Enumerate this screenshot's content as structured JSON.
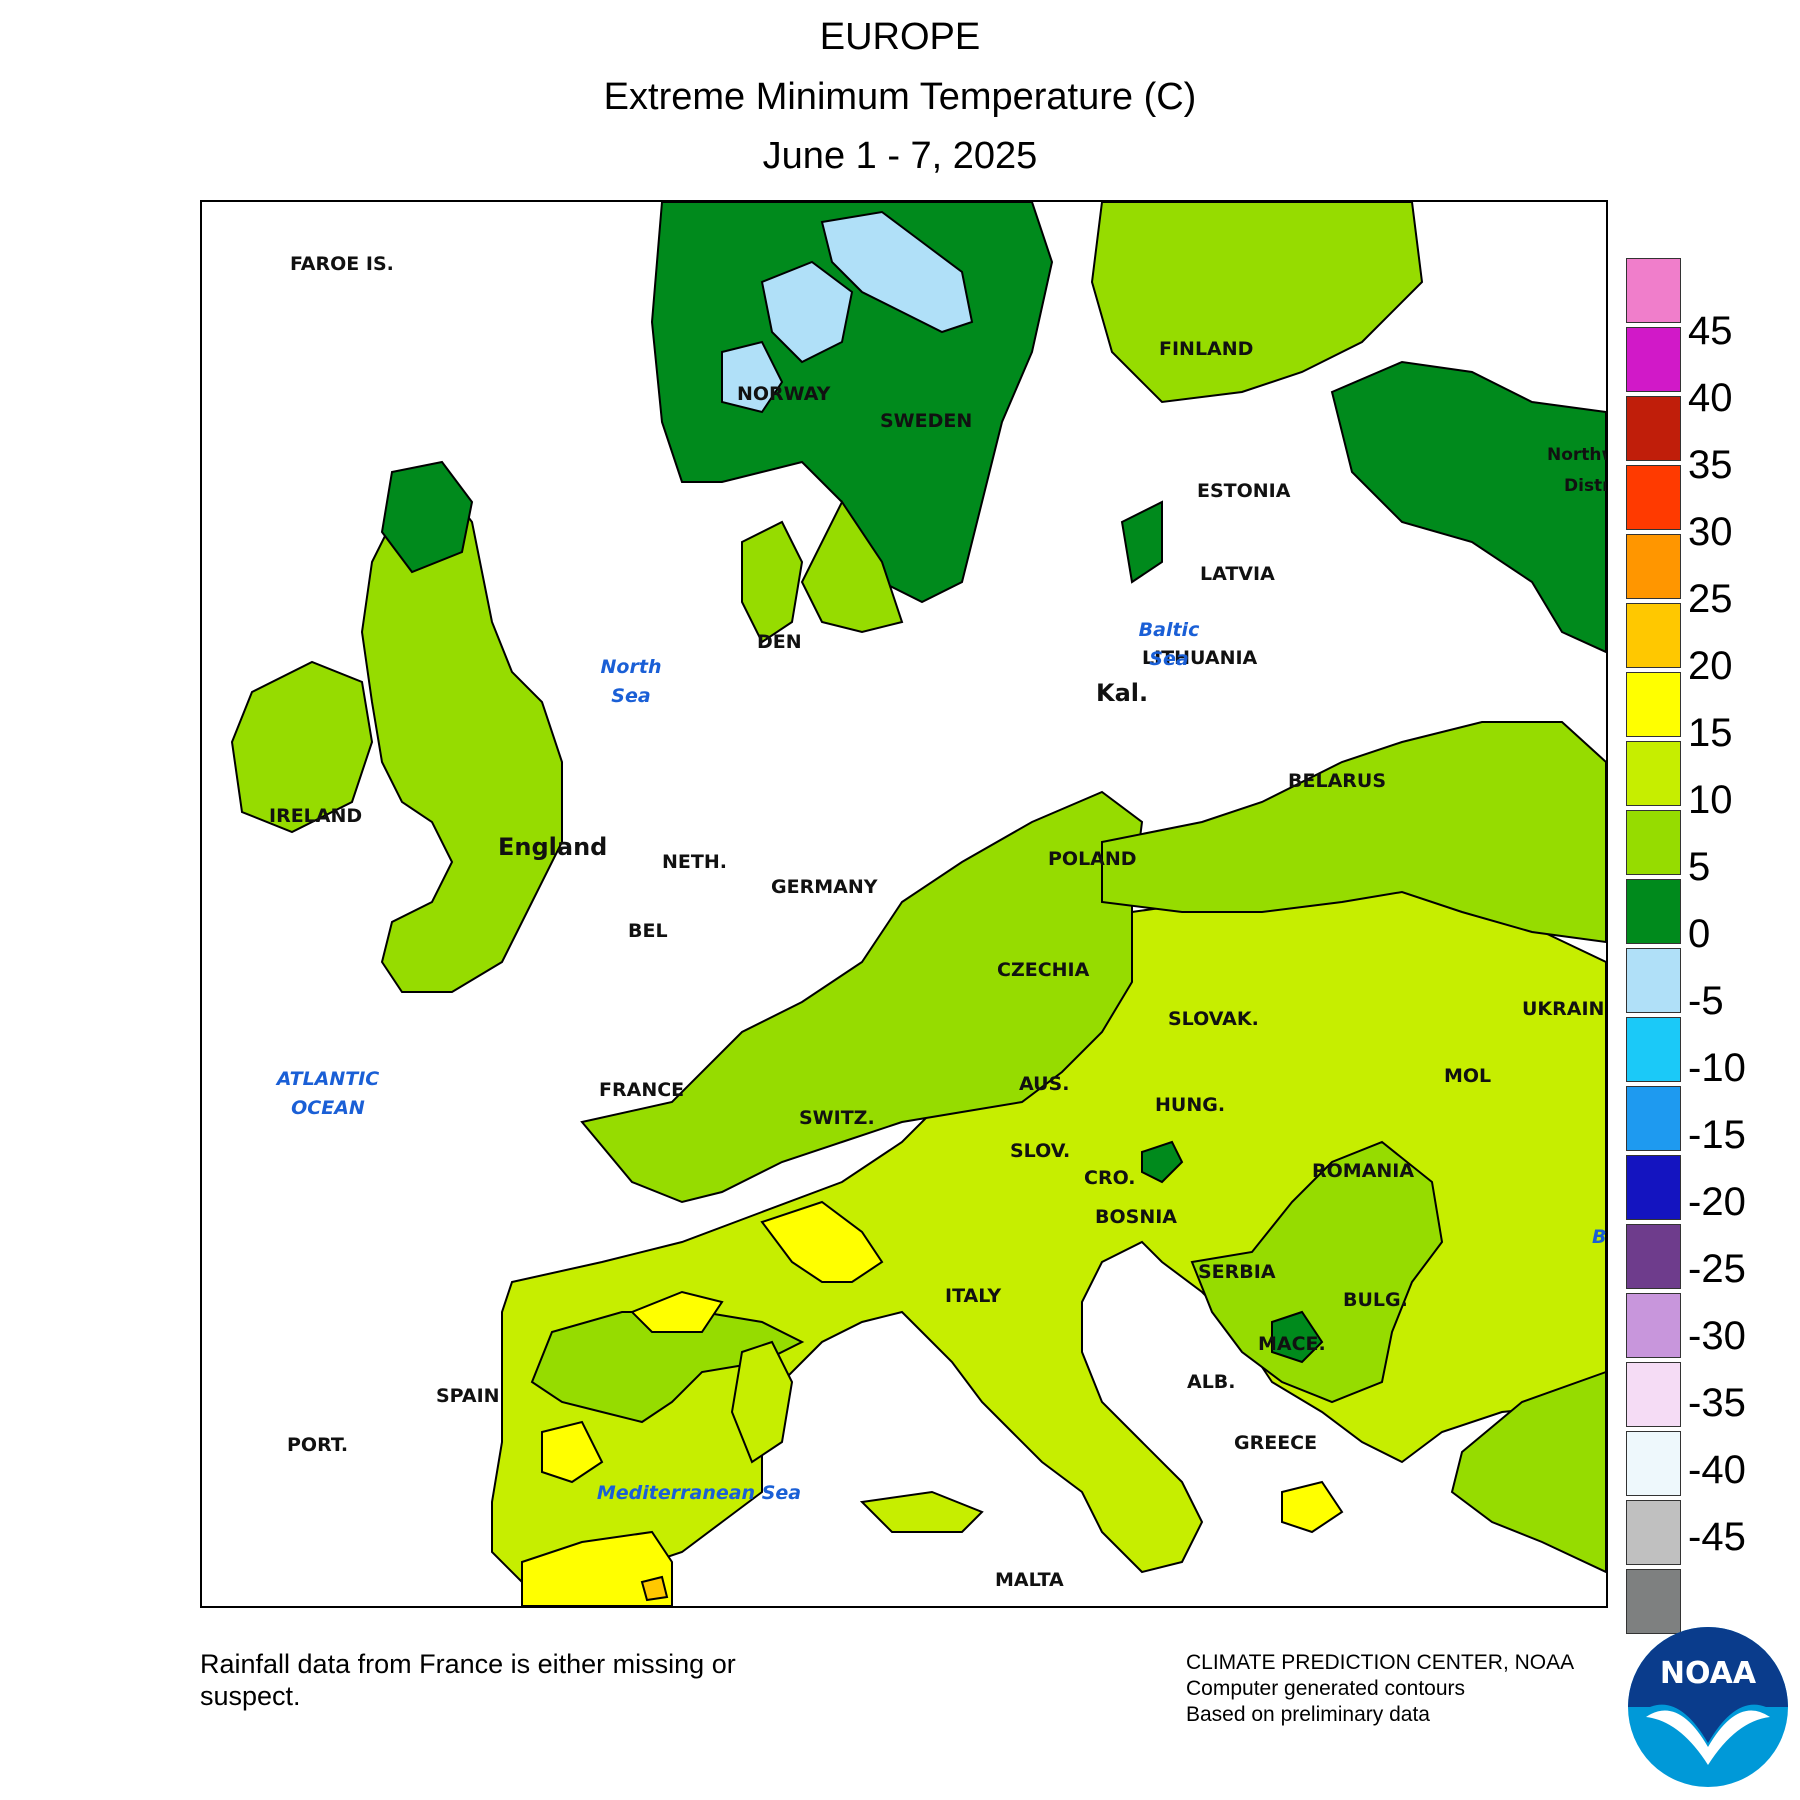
{
  "header": {
    "line1": "EUROPE",
    "line2": "Extreme Minimum Temperature (C)",
    "line3": "June 1 - 7, 2025"
  },
  "map": {
    "labels": {
      "faroe": "FAROE IS.",
      "norway": "NORWAY",
      "sweden": "SWEDEN",
      "finland": "FINLAND",
      "estonia": "ESTONIA",
      "latvia": "LATVIA",
      "lithuania": "LITHUANIA",
      "kal": "Kal.",
      "belarus": "BELARUS",
      "poland": "POLAND",
      "germany": "GERMANY",
      "neth": "NETH.",
      "bel": "BEL",
      "den": "DEN",
      "ireland": "IRELAND",
      "england": "England",
      "france": "FRANCE",
      "switz": "SWITZ.",
      "aus": "AUS.",
      "czechia": "CZECHIA",
      "slovak": "SLOVAK.",
      "hung": "HUNG.",
      "slov": "SLOV.",
      "cro": "CRO.",
      "bosnia": "BOSNIA",
      "serbia": "SERBIA",
      "romania": "ROMANIA",
      "mol": "MOL",
      "ukraine": "UKRAINE",
      "bulg": "BULG.",
      "mace": "MACE.",
      "alb": "ALB.",
      "greece": "GREECE",
      "italy": "ITALY",
      "spain": "SPAIN",
      "port": "PORT.",
      "malta": "MALTA",
      "northwest": "Northw",
      "district": "Distri",
      "b_edge": "B"
    },
    "seas": {
      "north_sea_1": "North",
      "north_sea_2": "Sea",
      "baltic_1": "Baltic",
      "baltic_2": "Sea",
      "atlantic_1": "ATLANTIC",
      "atlantic_2": "OCEAN",
      "med": "Mediterranean Sea"
    },
    "fill_colors": {
      "below_neg5": "#b0e0f8",
      "0_5": "#008a1c",
      "5_10": "#96dc00",
      "10_15": "#c6ee00",
      "15_20": "#ffff00",
      "20_25": "#ffc800"
    }
  },
  "legend": {
    "colors": [
      "#f07ecb",
      "#d119c8",
      "#c01e0a",
      "#ff3a00",
      "#ff9600",
      "#ffc800",
      "#ffff00",
      "#c6ee00",
      "#96dc00",
      "#008a1c",
      "#b0e0f8",
      "#1bc9f8",
      "#1e9af0",
      "#1414c0",
      "#6e3c8c",
      "#c896dc",
      "#f5dcf5",
      "#eef8fc",
      "#c0c0c0",
      "#7e8080"
    ],
    "ticks": [
      "45",
      "40",
      "35",
      "30",
      "25",
      "20",
      "15",
      "10",
      "5",
      "0",
      "-5",
      "-10",
      "-15",
      "-20",
      "-25",
      "-30",
      "-35",
      "-40",
      "-45"
    ]
  },
  "footer": {
    "note": "Rainfall data from France is either missing or suspect.",
    "credit_1": "CLIMATE PREDICTION CENTER, NOAA",
    "credit_2": "Computer generated contours",
    "credit_3": "Based on preliminary data",
    "logo_text": "NOAA"
  }
}
